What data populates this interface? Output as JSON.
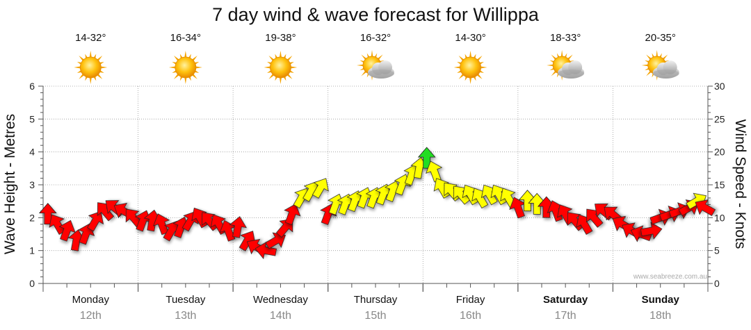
{
  "chart_data": {
    "type": "line",
    "title": "7 day wind & wave forecast for Willippa",
    "ylabel_left": "Wave Height - Metres",
    "ylabel_right": "Wind Speed - Knots",
    "ylim_left": [
      0,
      6
    ],
    "ylim_right": [
      0,
      30
    ],
    "yticks_left": [
      "0",
      "1",
      "2",
      "3",
      "4",
      "5",
      "6"
    ],
    "yticks_right": [
      "0",
      "5",
      "10",
      "15",
      "20",
      "25",
      "30"
    ],
    "grid": true,
    "watermark": "www.seabreeze.com.au",
    "days": [
      {
        "name": "Monday",
        "date": "12th",
        "temp": "14-32°",
        "weather": "sunny",
        "bold": false
      },
      {
        "name": "Tuesday",
        "date": "13th",
        "temp": "16-34°",
        "weather": "sunny",
        "bold": false
      },
      {
        "name": "Wednesday",
        "date": "14th",
        "temp": "19-38°",
        "weather": "sunny",
        "bold": false
      },
      {
        "name": "Thursday",
        "date": "15th",
        "temp": "16-32°",
        "weather": "partly-cloudy",
        "bold": false
      },
      {
        "name": "Friday",
        "date": "16th",
        "temp": "14-30°",
        "weather": "sunny",
        "bold": false
      },
      {
        "name": "Saturday",
        "date": "17th",
        "temp": "18-33°",
        "weather": "partly-cloudy",
        "bold": true
      },
      {
        "name": "Sunday",
        "date": "18th",
        "temp": "20-35°",
        "weather": "partly-cloudy",
        "bold": true
      }
    ],
    "colors": {
      "red": "#ff0000",
      "yellow": "#ffff00",
      "green": "#22dd22",
      "grid": "#999999",
      "axis": "#555555",
      "date": "#888888"
    },
    "wind_series": {
      "name": "Wind Speed",
      "unit": "knots",
      "points": [
        {
          "t": 0.05,
          "v": 10.5,
          "dir": 0,
          "c": "red"
        },
        {
          "t": 0.15,
          "v": 9.0,
          "dir": -30,
          "c": "red"
        },
        {
          "t": 0.25,
          "v": 8.0,
          "dir": 20,
          "c": "red"
        },
        {
          "t": 0.35,
          "v": 6.5,
          "dir": 10,
          "c": "red"
        },
        {
          "t": 0.45,
          "v": 7.5,
          "dir": 20,
          "c": "red"
        },
        {
          "t": 0.55,
          "v": 9.5,
          "dir": 30,
          "c": "red"
        },
        {
          "t": 0.65,
          "v": 11.0,
          "dir": -40,
          "c": "red"
        },
        {
          "t": 0.75,
          "v": 11.5,
          "dir": -50,
          "c": "red"
        },
        {
          "t": 0.85,
          "v": 11.0,
          "dir": -60,
          "c": "red"
        },
        {
          "t": 0.95,
          "v": 10.0,
          "dir": -40,
          "c": "red"
        },
        {
          "t": 1.05,
          "v": 9.5,
          "dir": 20,
          "c": "red"
        },
        {
          "t": 1.15,
          "v": 9.5,
          "dir": 10,
          "c": "red"
        },
        {
          "t": 1.25,
          "v": 9.0,
          "dir": -20,
          "c": "red"
        },
        {
          "t": 1.35,
          "v": 8.0,
          "dir": 30,
          "c": "red"
        },
        {
          "t": 1.45,
          "v": 8.5,
          "dir": 20,
          "c": "red"
        },
        {
          "t": 1.55,
          "v": 9.5,
          "dir": 30,
          "c": "red"
        },
        {
          "t": 1.65,
          "v": 10.0,
          "dir": -30,
          "c": "red"
        },
        {
          "t": 1.75,
          "v": 9.5,
          "dir": -40,
          "c": "red"
        },
        {
          "t": 1.85,
          "v": 9.0,
          "dir": -30,
          "c": "red"
        },
        {
          "t": 1.95,
          "v": 8.0,
          "dir": -20,
          "c": "red"
        },
        {
          "t": 2.05,
          "v": 8.5,
          "dir": 10,
          "c": "red"
        },
        {
          "t": 2.15,
          "v": 6.5,
          "dir": 30,
          "c": "red"
        },
        {
          "t": 2.25,
          "v": 5.5,
          "dir": -60,
          "c": "red"
        },
        {
          "t": 2.35,
          "v": 5.0,
          "dir": -80,
          "c": "red"
        },
        {
          "t": 2.45,
          "v": 6.5,
          "dir": 60,
          "c": "red"
        },
        {
          "t": 2.55,
          "v": 8.5,
          "dir": 40,
          "c": "red"
        },
        {
          "t": 2.62,
          "v": 10.5,
          "dir": 20,
          "c": "red"
        },
        {
          "t": 2.72,
          "v": 13.0,
          "dir": 30,
          "c": "yellow"
        },
        {
          "t": 2.82,
          "v": 14.0,
          "dir": 30,
          "c": "yellow"
        },
        {
          "t": 2.92,
          "v": 14.5,
          "dir": 30,
          "c": "yellow"
        },
        {
          "t": 3.0,
          "v": 10.5,
          "dir": 20,
          "c": "red"
        },
        {
          "t": 3.08,
          "v": 12.0,
          "dir": 20,
          "c": "yellow"
        },
        {
          "t": 3.18,
          "v": 12.0,
          "dir": 20,
          "c": "yellow"
        },
        {
          "t": 3.28,
          "v": 12.5,
          "dir": 20,
          "c": "yellow"
        },
        {
          "t": 3.38,
          "v": 13.0,
          "dir": 20,
          "c": "yellow"
        },
        {
          "t": 3.48,
          "v": 13.0,
          "dir": 20,
          "c": "yellow"
        },
        {
          "t": 3.58,
          "v": 13.5,
          "dir": 20,
          "c": "yellow"
        },
        {
          "t": 3.68,
          "v": 14.0,
          "dir": 20,
          "c": "yellow"
        },
        {
          "t": 3.78,
          "v": 15.0,
          "dir": 20,
          "c": "yellow"
        },
        {
          "t": 3.88,
          "v": 16.5,
          "dir": 20,
          "c": "yellow"
        },
        {
          "t": 3.96,
          "v": 17.5,
          "dir": 10,
          "c": "yellow"
        },
        {
          "t": 4.04,
          "v": 19.0,
          "dir": 0,
          "c": "green"
        },
        {
          "t": 4.12,
          "v": 17.0,
          "dir": -20,
          "c": "yellow"
        },
        {
          "t": 4.2,
          "v": 14.5,
          "dir": -30,
          "c": "yellow"
        },
        {
          "t": 4.3,
          "v": 14.0,
          "dir": -40,
          "c": "yellow"
        },
        {
          "t": 4.4,
          "v": 13.5,
          "dir": -40,
          "c": "yellow"
        },
        {
          "t": 4.5,
          "v": 13.5,
          "dir": -30,
          "c": "yellow"
        },
        {
          "t": 4.6,
          "v": 13.0,
          "dir": -30,
          "c": "yellow"
        },
        {
          "t": 4.7,
          "v": 13.5,
          "dir": -30,
          "c": "yellow"
        },
        {
          "t": 4.8,
          "v": 13.5,
          "dir": -30,
          "c": "yellow"
        },
        {
          "t": 4.9,
          "v": 13.0,
          "dir": -30,
          "c": "yellow"
        },
        {
          "t": 5.0,
          "v": 11.5,
          "dir": -20,
          "c": "red"
        },
        {
          "t": 5.1,
          "v": 12.5,
          "dir": 0,
          "c": "yellow"
        },
        {
          "t": 5.2,
          "v": 12.0,
          "dir": 0,
          "c": "yellow"
        },
        {
          "t": 5.3,
          "v": 11.5,
          "dir": 0,
          "c": "red"
        },
        {
          "t": 5.4,
          "v": 11.0,
          "dir": -20,
          "c": "red"
        },
        {
          "t": 5.5,
          "v": 10.5,
          "dir": -30,
          "c": "red"
        },
        {
          "t": 5.6,
          "v": 9.5,
          "dir": -40,
          "c": "red"
        },
        {
          "t": 5.7,
          "v": 9.0,
          "dir": -30,
          "c": "red"
        },
        {
          "t": 5.8,
          "v": 10.0,
          "dir": -40,
          "c": "red"
        },
        {
          "t": 5.9,
          "v": 11.0,
          "dir": -50,
          "c": "red"
        },
        {
          "t": 6.0,
          "v": 10.5,
          "dir": -50,
          "c": "red"
        },
        {
          "t": 6.1,
          "v": 9.0,
          "dir": -60,
          "c": "red"
        },
        {
          "t": 6.2,
          "v": 8.0,
          "dir": -60,
          "c": "red"
        },
        {
          "t": 6.3,
          "v": 7.5,
          "dir": -70,
          "c": "red"
        },
        {
          "t": 6.4,
          "v": 8.0,
          "dir": 80,
          "c": "red"
        },
        {
          "t": 6.5,
          "v": 10.0,
          "dir": 70,
          "c": "red"
        },
        {
          "t": 6.6,
          "v": 10.5,
          "dir": 70,
          "c": "red"
        },
        {
          "t": 6.7,
          "v": 11.0,
          "dir": 70,
          "c": "red"
        },
        {
          "t": 6.8,
          "v": 11.5,
          "dir": 60,
          "c": "red"
        },
        {
          "t": 6.88,
          "v": 12.5,
          "dir": 60,
          "c": "yellow"
        },
        {
          "t": 6.97,
          "v": 11.5,
          "dir": -60,
          "c": "red"
        }
      ]
    }
  }
}
